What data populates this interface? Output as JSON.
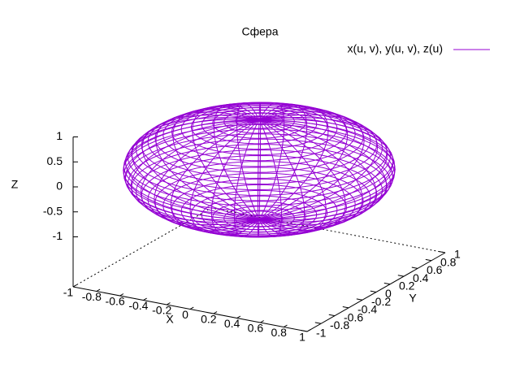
{
  "chart_data": {
    "type": "surface3d",
    "title": "Сфера",
    "series": [
      {
        "name": "x(u, v), y(u, v), z(u)",
        "color": "#9400d3"
      }
    ],
    "xlabel": "X",
    "ylabel": "Y",
    "zlabel": "Z",
    "xlim": [
      -1,
      1
    ],
    "ylim": [
      -1,
      1
    ],
    "zlim": [
      -1,
      1
    ],
    "xticks": [
      -1,
      -0.8,
      -0.6,
      -0.4,
      -0.2,
      0,
      0.2,
      0.4,
      0.6,
      0.8,
      1
    ],
    "yticks": [
      -1,
      -0.8,
      -0.6,
      -0.4,
      -0.2,
      0,
      0.2,
      0.4,
      0.6,
      0.8,
      1
    ],
    "zticks": [
      -1,
      -0.5,
      0,
      0.5,
      1
    ]
  }
}
